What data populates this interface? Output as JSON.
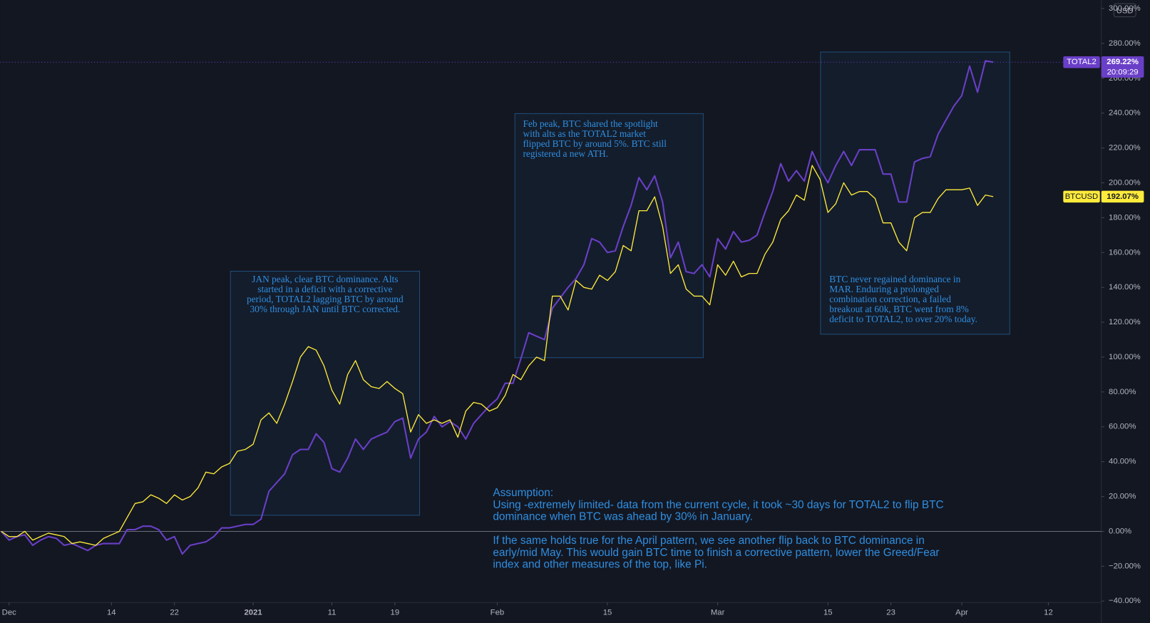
{
  "chart_data": {
    "type": "line",
    "x": [
      -1,
      0,
      1,
      2,
      3,
      4,
      5,
      6,
      7,
      8,
      9,
      10,
      11,
      12,
      13,
      14,
      15,
      16,
      17,
      18,
      19,
      20,
      21,
      22,
      23,
      24,
      25,
      26,
      27,
      28,
      29,
      30,
      31,
      32,
      33,
      34,
      35,
      36,
      37,
      38,
      39,
      40,
      41,
      42,
      43,
      44,
      45,
      46,
      47,
      48,
      49,
      50,
      51,
      52,
      53,
      54,
      55,
      56,
      57,
      58,
      59,
      60,
      61,
      62,
      63,
      64,
      65,
      66,
      67,
      68,
      69,
      70,
      71,
      72,
      73,
      74,
      75,
      76,
      77,
      78,
      79,
      80,
      81,
      82,
      83,
      84,
      85,
      86,
      87,
      88,
      89,
      90,
      91,
      92,
      93,
      94,
      95,
      96,
      97,
      98,
      99,
      100,
      101,
      102,
      103,
      104,
      105,
      106,
      107,
      108,
      109,
      110,
      111,
      112,
      113,
      114,
      115,
      116,
      117,
      118,
      119,
      120,
      121,
      122,
      123,
      124,
      125
    ],
    "series": [
      {
        "name": "TOTAL2",
        "color": "#6a3fc8",
        "last_value_label": "269.22%",
        "countdown": "20:09:29",
        "values": [
          0,
          -5,
          -3,
          -2,
          -8,
          -5,
          -3,
          -4,
          -8,
          -7,
          -9,
          -11,
          -8,
          -7,
          -7,
          -7,
          1,
          1,
          3,
          3,
          1,
          -5,
          -3,
          -13,
          -8,
          -7,
          -6,
          -3,
          2,
          2,
          3,
          4,
          4,
          7,
          23,
          28,
          33,
          44,
          47,
          47,
          56,
          51,
          36,
          34,
          42,
          53,
          47,
          53,
          55,
          57,
          63,
          65,
          42,
          53,
          57,
          66,
          60,
          63,
          60,
          53,
          62,
          67,
          72,
          76,
          85,
          85,
          99,
          114,
          112,
          110,
          128,
          134,
          140,
          145,
          153,
          168,
          166,
          160,
          161,
          175,
          187,
          203,
          196,
          204,
          189,
          157,
          166,
          149,
          148,
          153,
          146,
          168,
          162,
          172,
          166,
          167,
          170,
          183,
          195,
          211,
          201,
          207,
          201,
          218,
          208,
          200,
          210,
          218,
          210,
          219,
          219,
          219,
          205,
          205,
          189,
          189,
          212,
          214,
          215,
          228,
          236,
          244,
          250,
          267,
          252,
          270,
          269.22
        ]
      },
      {
        "name": "BTCUSD",
        "color": "#ffeb3b",
        "last_value_label": "192.07%",
        "values": [
          0,
          -3,
          -3,
          0,
          -5,
          -3,
          -1,
          -2,
          -3,
          -7,
          -6,
          -7,
          -8,
          -4,
          -2,
          0,
          8,
          16,
          17,
          21,
          19,
          16,
          21,
          18,
          20,
          25,
          34,
          33,
          37,
          39,
          46,
          47,
          50,
          64,
          68,
          62,
          73,
          86,
          100,
          106,
          104,
          95,
          81,
          73,
          90,
          98,
          87,
          83,
          82,
          86,
          82,
          79,
          57,
          67,
          62,
          64,
          62,
          64,
          54,
          69,
          74,
          73,
          69,
          71,
          78,
          90,
          87,
          95,
          100,
          98,
          135,
          135,
          127,
          144,
          140,
          139,
          147,
          144,
          149,
          164,
          161,
          184,
          184,
          192,
          175,
          148,
          153,
          139,
          135,
          135,
          130,
          153,
          147,
          155,
          146,
          148,
          148,
          159,
          166,
          179,
          184,
          193,
          190,
          210,
          202,
          183,
          188,
          200,
          193,
          195,
          195,
          191,
          177,
          177,
          166,
          161,
          180,
          183,
          183,
          191,
          196,
          196,
          196,
          197,
          187,
          193,
          192.07
        ]
      }
    ],
    "xlim": [
      -1.12,
      138.73
    ],
    "xticks": [
      {
        "value": 0,
        "label": "Dec"
      },
      {
        "value": 13,
        "label": "14"
      },
      {
        "value": 21,
        "label": "22"
      },
      {
        "value": 31,
        "label": "2021"
      },
      {
        "value": 41,
        "label": "11"
      },
      {
        "value": 49,
        "label": "19"
      },
      {
        "value": 62,
        "label": "Feb"
      },
      {
        "value": 76,
        "label": "15"
      },
      {
        "value": 90,
        "label": "Mar"
      },
      {
        "value": 104,
        "label": "15"
      },
      {
        "value": 112,
        "label": "23"
      },
      {
        "value": 121,
        "label": "Apr"
      },
      {
        "value": 132,
        "label": "12"
      }
    ],
    "ylim": [
      -40.8,
      304.9
    ],
    "yticks": [
      {
        "value": -40,
        "label": "−40.00%"
      },
      {
        "value": -20,
        "label": "−20.00%"
      },
      {
        "value": 0,
        "label": "0.00%"
      },
      {
        "value": 20,
        "label": "20.00%"
      },
      {
        "value": 40,
        "label": "40.00%"
      },
      {
        "value": 60,
        "label": "60.00%"
      },
      {
        "value": 80,
        "label": "80.00%"
      },
      {
        "value": 100,
        "label": "100.00%"
      },
      {
        "value": 120,
        "label": "120.00%"
      },
      {
        "value": 140,
        "label": "140.00%"
      },
      {
        "value": 160,
        "label": "160.00%"
      },
      {
        "value": 180,
        "label": "180.00%"
      },
      {
        "value": 200,
        "label": "200.00%"
      },
      {
        "value": 220,
        "label": "220.00%"
      },
      {
        "value": 240,
        "label": "240.00%"
      },
      {
        "value": 260,
        "label": "260.00%"
      },
      {
        "value": 280,
        "label": "280.00%"
      },
      {
        "value": 300,
        "label": "300.00%"
      }
    ],
    "currency": "USD",
    "grid": false,
    "annotations": [
      {
        "lines": [
          "JAN peak, clear BTC dominance. Alts",
          "started in a deficit with a corrective",
          "period, TOTAL2 lagging BTC by around",
          "30% through JAN until BTC corrected."
        ]
      },
      {
        "lines": [
          "Feb peak, BTC shared the spotlight",
          "with alts as the TOTAL2 market",
          "flipped BTC by around 5%. BTC still",
          "registered a new ATH."
        ]
      },
      {
        "lines": [
          "BTC never regained dominance in",
          "MAR. Enduring a prolonged",
          "combination correction, a failed",
          "breakout at 60k, BTC went from 8%",
          "deficit to TOTAL2, to over 20% today."
        ]
      }
    ],
    "note": {
      "paragraphs": [
        [
          "Assumption:",
          "Using -extremely limited- data from the current cycle, it took ~30 days for TOTAL2 to flip BTC",
          "dominance when BTC was ahead by 30% in January."
        ],
        [
          "If the same holds true for the April pattern, we see another flip back to BTC dominance in",
          "early/mid May. This would gain BTC time to finish a corrective pattern, lower the Greed/Fear",
          "index and other measures of the top, like Pi."
        ]
      ]
    }
  }
}
